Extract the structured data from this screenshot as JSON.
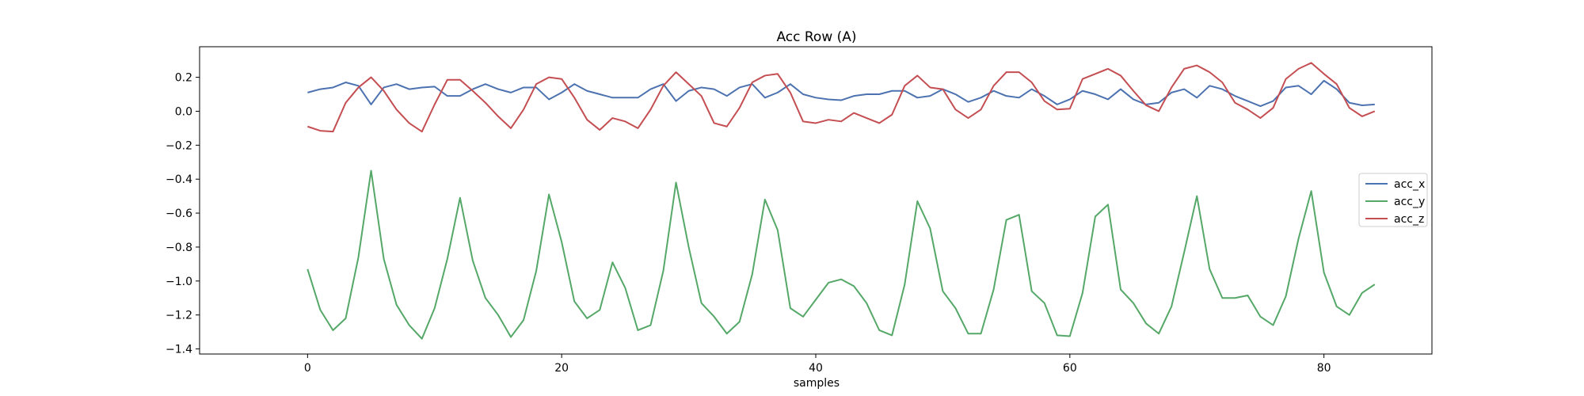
{
  "chart_data": {
    "type": "line",
    "title": "Acc Row (A)",
    "xlabel": "samples",
    "ylabel": "",
    "xlim": [
      -8.5,
      88.5
    ],
    "ylim": [
      -1.43,
      0.38
    ],
    "xticks": [
      0,
      20,
      40,
      60,
      80
    ],
    "yticks": [
      0.2,
      0.0,
      -0.2,
      -0.4,
      -0.6,
      -0.8,
      -1.0,
      -1.2,
      -1.4
    ],
    "ytick_labels": [
      "0.2",
      "0.0",
      "−0.2",
      "−0.4",
      "−0.6",
      "−0.8",
      "−1.0",
      "−1.2",
      "−1.4"
    ],
    "grid": false,
    "legend_position": "center-right",
    "x": [
      0,
      1,
      2,
      3,
      4,
      5,
      6,
      7,
      8,
      9,
      10,
      11,
      12,
      13,
      14,
      15,
      16,
      17,
      18,
      19,
      20,
      21,
      22,
      23,
      24,
      25,
      26,
      27,
      28,
      29,
      30,
      31,
      32,
      33,
      34,
      35,
      36,
      37,
      38,
      39,
      40,
      41,
      42,
      43,
      44,
      45,
      46,
      47,
      48,
      49,
      50,
      51,
      52,
      53,
      54,
      55,
      56,
      57,
      58,
      59,
      60,
      61,
      62,
      63,
      64,
      65,
      66,
      67,
      68,
      69,
      70,
      71,
      72,
      73,
      74,
      75,
      76,
      77,
      78,
      79,
      80,
      81,
      82,
      83,
      84
    ],
    "series": [
      {
        "name": "acc_x",
        "color": "#4c72b0",
        "values": [
          0.11,
          0.13,
          0.14,
          0.17,
          0.15,
          0.04,
          0.14,
          0.16,
          0.13,
          0.14,
          0.145,
          0.09,
          0.09,
          0.13,
          0.16,
          0.13,
          0.11,
          0.14,
          0.14,
          0.07,
          0.11,
          0.16,
          0.12,
          0.1,
          0.08,
          0.08,
          0.08,
          0.13,
          0.16,
          0.06,
          0.12,
          0.14,
          0.13,
          0.09,
          0.14,
          0.16,
          0.08,
          0.11,
          0.16,
          0.1,
          0.08,
          0.07,
          0.065,
          0.09,
          0.1,
          0.1,
          0.12,
          0.12,
          0.08,
          0.09,
          0.13,
          0.1,
          0.055,
          0.08,
          0.12,
          0.09,
          0.08,
          0.13,
          0.09,
          0.04,
          0.07,
          0.12,
          0.1,
          0.07,
          0.13,
          0.07,
          0.04,
          0.05,
          0.11,
          0.13,
          0.08,
          0.15,
          0.13,
          0.09,
          0.06,
          0.03,
          0.06,
          0.14,
          0.15,
          0.1,
          0.18,
          0.13,
          0.05,
          0.035,
          0.04
        ]
      },
      {
        "name": "acc_y",
        "color": "#55a868",
        "values": [
          -0.93,
          -1.17,
          -1.29,
          -1.22,
          -0.86,
          -0.35,
          -0.87,
          -1.14,
          -1.26,
          -1.34,
          -1.16,
          -0.87,
          -0.51,
          -0.88,
          -1.1,
          -1.2,
          -1.33,
          -1.23,
          -0.94,
          -0.49,
          -0.77,
          -1.12,
          -1.22,
          -1.17,
          -0.89,
          -1.04,
          -1.29,
          -1.26,
          -0.94,
          -0.42,
          -0.8,
          -1.13,
          -1.21,
          -1.31,
          -1.24,
          -0.96,
          -0.52,
          -0.7,
          -1.16,
          -1.21,
          -1.11,
          -1.01,
          -0.99,
          -1.03,
          -1.13,
          -1.29,
          -1.32,
          -1.02,
          -0.53,
          -0.69,
          -1.06,
          -1.16,
          -1.31,
          -1.31,
          -1.05,
          -0.64,
          -0.61,
          -1.06,
          -1.13,
          -1.32,
          -1.325,
          -1.07,
          -0.62,
          -0.55,
          -1.05,
          -1.13,
          -1.25,
          -1.31,
          -1.15,
          -0.83,
          -0.5,
          -0.93,
          -1.1,
          -1.1,
          -1.085,
          -1.21,
          -1.26,
          -1.09,
          -0.75,
          -0.47,
          -0.95,
          -1.15,
          -1.2,
          -1.07,
          -1.02
        ]
      },
      {
        "name": "acc_z",
        "color": "#c44e52",
        "values": [
          -0.09,
          -0.115,
          -0.12,
          0.05,
          0.14,
          0.2,
          0.12,
          0.01,
          -0.07,
          -0.12,
          0.04,
          0.185,
          0.185,
          0.12,
          0.05,
          -0.03,
          -0.1,
          0.01,
          0.16,
          0.2,
          0.19,
          0.08,
          -0.05,
          -0.11,
          -0.04,
          -0.06,
          -0.1,
          0.01,
          0.15,
          0.23,
          0.16,
          0.09,
          -0.07,
          -0.09,
          0.02,
          0.17,
          0.21,
          0.22,
          0.11,
          -0.06,
          -0.07,
          -0.05,
          -0.06,
          -0.01,
          -0.04,
          -0.07,
          -0.02,
          0.15,
          0.21,
          0.14,
          0.13,
          0.01,
          -0.04,
          0.01,
          0.15,
          0.23,
          0.23,
          0.17,
          0.06,
          0.01,
          0.015,
          0.19,
          0.22,
          0.25,
          0.21,
          0.12,
          0.035,
          0.0,
          0.14,
          0.25,
          0.27,
          0.23,
          0.17,
          0.05,
          0.01,
          -0.04,
          0.02,
          0.19,
          0.25,
          0.285,
          0.22,
          0.16,
          0.02,
          -0.03,
          0.0
        ]
      }
    ]
  }
}
